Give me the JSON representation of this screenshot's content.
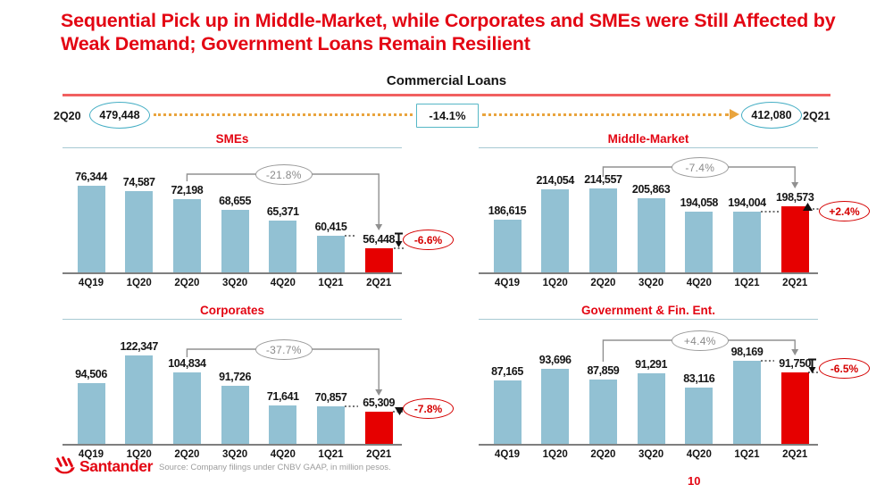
{
  "slide": {
    "title": "Sequential Pick up in Middle-Market, while Corporates and SMEs were Still Affected by Weak Demand; Government Loans Remain Resilient",
    "section_title": "Commercial Loans",
    "page_number": "10",
    "source_note": "Source: Company filings under CNBV GAAP, in million pesos.",
    "brand": "Santander"
  },
  "summary_flow": {
    "start_period": "2Q20",
    "start_value": "479,448",
    "change_pct": "-14.1%",
    "end_value": "412,080",
    "end_period": "2Q21"
  },
  "colors": {
    "santander_red": "#E30613",
    "bar_blue": "#92C1D3",
    "bar_red": "#E60000",
    "teal_outline": "#45AEC4",
    "orange_dots": "#E9A43D",
    "gray_annotation": "#909090",
    "red_oval": "#D50000"
  },
  "chart_data": [
    {
      "type": "bar",
      "title": "SMEs",
      "categories": [
        "4Q19",
        "1Q20",
        "2Q20",
        "3Q20",
        "4Q20",
        "1Q21",
        "2Q21"
      ],
      "values": [
        76344,
        74587,
        72198,
        68655,
        65371,
        60415,
        56448
      ],
      "highlight_index": 6,
      "ylim": [
        48800,
        88500
      ],
      "grid": false,
      "yoy_change": {
        "label": "-21.8%",
        "from": "2Q20",
        "to": "2Q21",
        "from_index": 2,
        "to_index": 6
      },
      "qoq_change": {
        "label": "-6.6%",
        "direction": "down",
        "marker": "bar-arrow-down"
      }
    },
    {
      "type": "bar",
      "title": "Middle-Market",
      "categories": [
        "4Q19",
        "1Q20",
        "2Q20",
        "3Q20",
        "4Q20",
        "1Q21",
        "2Q21"
      ],
      "values": [
        186615,
        214054,
        214557,
        205863,
        194058,
        194004,
        198573
      ],
      "highlight_index": 6,
      "ylim": [
        140000,
        251000
      ],
      "grid": false,
      "yoy_change": {
        "label": "-7.4%",
        "from": "2Q20",
        "to": "2Q21",
        "from_index": 2,
        "to_index": 6
      },
      "qoq_change": {
        "label": "+2.4%",
        "direction": "up",
        "marker": "triangle-up"
      }
    },
    {
      "type": "bar",
      "title": "Corporates",
      "categories": [
        "4Q19",
        "1Q20",
        "2Q20",
        "3Q20",
        "4Q20",
        "1Q21",
        "2Q21"
      ],
      "values": [
        94506,
        122347,
        104834,
        91726,
        71641,
        70857,
        65309
      ],
      "highlight_index": 6,
      "ylim": [
        33300,
        159000
      ],
      "grid": false,
      "yoy_change": {
        "label": "-37.7%",
        "from": "2Q20",
        "to": "2Q21",
        "from_index": 2,
        "to_index": 6
      },
      "qoq_change": {
        "label": "-7.8%",
        "direction": "down",
        "marker": "triangle-down"
      }
    },
    {
      "type": "bar",
      "title": "Government & Fin. Ent.",
      "categories": [
        "4Q19",
        "1Q20",
        "2Q20",
        "3Q20",
        "4Q20",
        "1Q21",
        "2Q21"
      ],
      "values": [
        87165,
        93696,
        87859,
        91291,
        83116,
        98169,
        91750
      ],
      "highlight_index": 6,
      "ylim": [
        51700,
        121700
      ],
      "grid": false,
      "yoy_change": {
        "label": "+4.4%",
        "from": "2Q20",
        "to": "2Q21",
        "from_index": 2,
        "to_index": 6
      },
      "qoq_change": {
        "label": "-6.5%",
        "direction": "down",
        "marker": "bar-arrow-down"
      }
    }
  ]
}
